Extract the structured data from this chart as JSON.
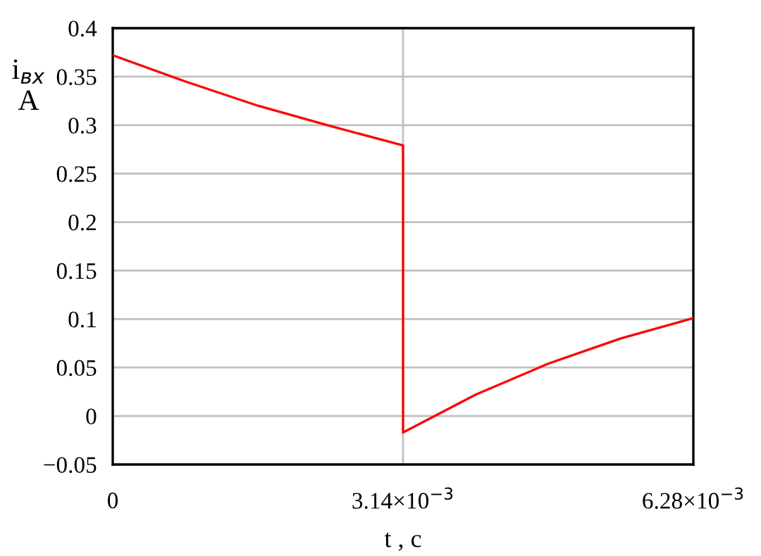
{
  "chart_data": {
    "type": "line",
    "xlabel": "t , c",
    "ylabel": "i$_{вх}$\nA",
    "x": [
      0,
      0.000785,
      0.00157,
      0.002355,
      0.00314,
      0.00314,
      0.003925,
      0.00471,
      0.005495,
      0.00628
    ],
    "series": [
      {
        "color": "#ff0000",
        "values": [
          0.372,
          0.345,
          0.32,
          0.299,
          0.279,
          -0.017,
          0.022,
          0.054,
          0.08,
          0.101
        ]
      }
    ],
    "xlim": [
      0,
      0.00628
    ],
    "ylim": [
      -0.05,
      0.4
    ],
    "xticks": [
      0,
      {
        "value": 0.00314,
        "label": "3.14×10$^{−3}$"
      },
      {
        "value": 0.00628,
        "label": "6.28×10$^{−3}$"
      }
    ],
    "yticks": [
      -0.05,
      0,
      0.05,
      0.1,
      0.15,
      0.2,
      0.25,
      0.3,
      0.35,
      0.4
    ],
    "grid": true,
    "marker": "none",
    "line_style": "solid"
  }
}
